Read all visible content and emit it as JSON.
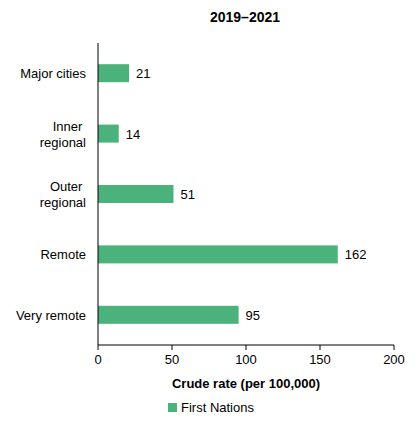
{
  "chart_data": {
    "type": "bar",
    "title": "2019–2021",
    "orientation": "horizontal",
    "categories": [
      "Major cities",
      "Inner regional",
      "Outer regional",
      "Remote",
      "Very remote"
    ],
    "series": [
      {
        "name": "First Nations",
        "color": "#4cb27c",
        "values": [
          21,
          14,
          51,
          162,
          95
        ]
      }
    ],
    "x_label": "Crude rate (per 100,000)",
    "xlim": [
      0,
      200
    ],
    "xticks": [
      0,
      50,
      100,
      150,
      200
    ],
    "data_labels": true,
    "grid": false,
    "legend": "bottom"
  }
}
